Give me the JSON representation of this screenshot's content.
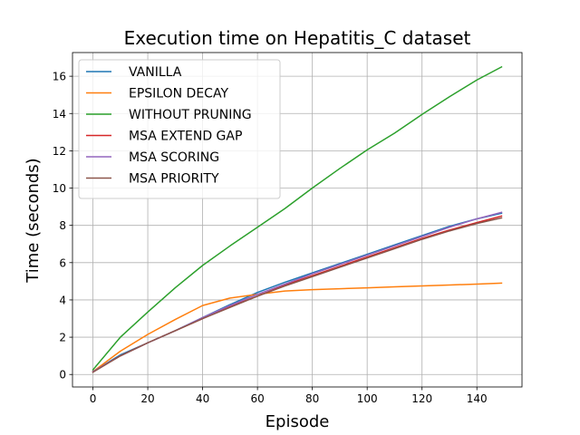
{
  "chart_data": {
    "type": "line",
    "title": "Execution time on Hepatitis_C dataset",
    "xlabel": "Episode",
    "ylabel": "Time (seconds)",
    "xlim": [
      -7.45,
      156.45
    ],
    "ylim": [
      -0.67,
      17.27
    ],
    "xticks": [
      0,
      20,
      40,
      60,
      80,
      100,
      120,
      140
    ],
    "yticks": [
      0,
      2,
      4,
      6,
      8,
      10,
      12,
      14,
      16
    ],
    "grid": true,
    "legend_position": "upper left",
    "series": [
      {
        "name": "VANILLA",
        "color": "#1f77b4",
        "x": [
          0,
          10,
          20,
          30,
          40,
          50,
          60,
          70,
          80,
          90,
          100,
          110,
          120,
          130,
          140,
          149
        ],
        "y": [
          0.15,
          1.05,
          1.7,
          2.35,
          3.05,
          3.75,
          4.4,
          4.95,
          5.45,
          5.95,
          6.45,
          6.95,
          7.45,
          7.95,
          8.35,
          8.65
        ]
      },
      {
        "name": "EPSILON DECAY",
        "color": "#ff7f0e",
        "x": [
          0,
          10,
          20,
          30,
          40,
          50,
          60,
          70,
          80,
          90,
          100,
          110,
          120,
          130,
          140,
          149
        ],
        "y": [
          0.15,
          1.25,
          2.15,
          2.95,
          3.7,
          4.1,
          4.3,
          4.48,
          4.55,
          4.6,
          4.65,
          4.7,
          4.75,
          4.8,
          4.85,
          4.9
        ]
      },
      {
        "name": "WITHOUT PRUNING",
        "color": "#2ca02c",
        "x": [
          0,
          10,
          20,
          30,
          40,
          50,
          60,
          70,
          80,
          90,
          100,
          110,
          120,
          130,
          140,
          149
        ],
        "y": [
          0.25,
          2.0,
          3.35,
          4.65,
          5.85,
          6.9,
          7.9,
          8.9,
          10.0,
          11.05,
          12.05,
          12.95,
          13.95,
          14.9,
          15.8,
          16.5
        ]
      },
      {
        "name": "MSA EXTEND GAP",
        "color": "#d62728",
        "x": [
          0,
          10,
          20,
          30,
          40,
          50,
          60,
          70,
          80,
          90,
          100,
          110,
          120,
          130,
          140,
          149
        ],
        "y": [
          0.15,
          1.0,
          1.7,
          2.35,
          3.0,
          3.65,
          4.2,
          4.8,
          5.3,
          5.8,
          6.3,
          6.8,
          7.3,
          7.75,
          8.15,
          8.5
        ]
      },
      {
        "name": "MSA SCORING",
        "color": "#9467bd",
        "x": [
          0,
          10,
          20,
          30,
          40,
          50,
          60,
          70,
          80,
          90,
          100,
          110,
          120,
          130,
          140,
          149
        ],
        "y": [
          0.15,
          1.0,
          1.7,
          2.35,
          3.05,
          3.7,
          4.3,
          4.85,
          5.4,
          5.9,
          6.4,
          6.9,
          7.4,
          7.9,
          8.35,
          8.7
        ]
      },
      {
        "name": "MSA PRIORITY",
        "color": "#8c564b",
        "x": [
          0,
          10,
          20,
          30,
          40,
          50,
          60,
          70,
          80,
          90,
          100,
          110,
          120,
          130,
          140,
          149
        ],
        "y": [
          0.12,
          1.0,
          1.7,
          2.35,
          3.0,
          3.6,
          4.2,
          4.75,
          5.25,
          5.75,
          6.25,
          6.75,
          7.25,
          7.7,
          8.1,
          8.4
        ]
      }
    ]
  }
}
